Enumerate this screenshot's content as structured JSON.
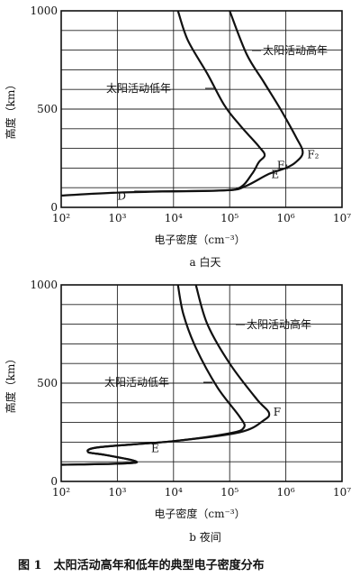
{
  "figure_title": "图 1　太阳活动高年和低年的典型电子密度分布",
  "chart_data": [
    {
      "type": "line",
      "caption": "a  白天",
      "xlabel": "电子密度（cm⁻³）",
      "ylabel": "高度（km）",
      "xscale": "log",
      "xlim": [
        100,
        10000000
      ],
      "ylim": [
        0,
        1000
      ],
      "x_ticks": [
        "10²",
        "10³",
        "10⁴",
        "10⁵",
        "10⁶",
        "10⁷"
      ],
      "y_ticks": [
        "0",
        "500",
        "1000"
      ],
      "grid": true,
      "series": [
        {
          "name": "太阳活动低年",
          "points": [
            [
              2000,
              80
            ],
            [
              60000,
              85
            ],
            [
              150000,
              100
            ],
            [
              250000,
              170
            ],
            [
              330000,
              230
            ],
            [
              420000,
              265
            ],
            [
              330000,
              310
            ],
            [
              150000,
              420
            ],
            [
              80000,
              520
            ],
            [
              40000,
              680
            ],
            [
              18000,
              850
            ],
            [
              12000,
              1000
            ]
          ]
        },
        {
          "name": "太阳活动高年",
          "points": [
            [
              100,
              60
            ],
            [
              1000,
              75
            ],
            [
              10000,
              82
            ],
            [
              100000,
              88
            ],
            [
              200000,
              110
            ],
            [
              500000,
              170
            ],
            [
              1000000,
              200
            ],
            [
              1500000,
              230
            ],
            [
              2000000,
              280
            ],
            [
              1500000,
              360
            ],
            [
              800000,
              500
            ],
            [
              400000,
              640
            ],
            [
              200000,
              780
            ],
            [
              100000,
              1000
            ]
          ]
        }
      ],
      "annotations": [
        {
          "text": "D",
          "x": 1000,
          "y": 40
        },
        {
          "text": "E",
          "x": 550000,
          "y": 150
        },
        {
          "text": "F₁",
          "x": 700000,
          "y": 195
        },
        {
          "text": "F₂",
          "x": 2400000,
          "y": 250
        }
      ]
    },
    {
      "type": "line",
      "caption": "b  夜间",
      "xlabel": "电子密度（cm⁻³）",
      "ylabel": "高度（km）",
      "xscale": "log",
      "xlim": [
        100,
        10000000
      ],
      "ylim": [
        0,
        1000
      ],
      "x_ticks": [
        "10²",
        "10³",
        "10⁴",
        "10⁵",
        "10⁶",
        "10⁷"
      ],
      "y_ticks": [
        "0",
        "500",
        "1000"
      ],
      "grid": true,
      "series": [
        {
          "name": "太阳活动低年",
          "points": [
            [
              100,
              85
            ],
            [
              1500,
              92
            ],
            [
              2000,
              105
            ],
            [
              600,
              135
            ],
            [
              300,
              150
            ],
            [
              500,
              175
            ],
            [
              10000,
              205
            ],
            [
              100000,
              245
            ],
            [
              180000,
              275
            ],
            [
              150000,
              330
            ],
            [
              60000,
              480
            ],
            [
              25000,
              680
            ],
            [
              15000,
              850
            ],
            [
              12000,
              1000
            ]
          ]
        },
        {
          "name": "太阳活动高年",
          "points": [
            [
              100,
              85
            ],
            [
              1500,
              92
            ],
            [
              2000,
              105
            ],
            [
              600,
              135
            ],
            [
              300,
              150
            ],
            [
              500,
              175
            ],
            [
              10000,
              205
            ],
            [
              150000,
              250
            ],
            [
              400000,
              310
            ],
            [
              500000,
              350
            ],
            [
              300000,
              420
            ],
            [
              100000,
              600
            ],
            [
              40000,
              800
            ],
            [
              25000,
              1000
            ]
          ]
        }
      ],
      "annotations": [
        {
          "text": "E",
          "x": 4000,
          "y": 150
        },
        {
          "text": "F",
          "x": 600000,
          "y": 335
        }
      ]
    }
  ]
}
